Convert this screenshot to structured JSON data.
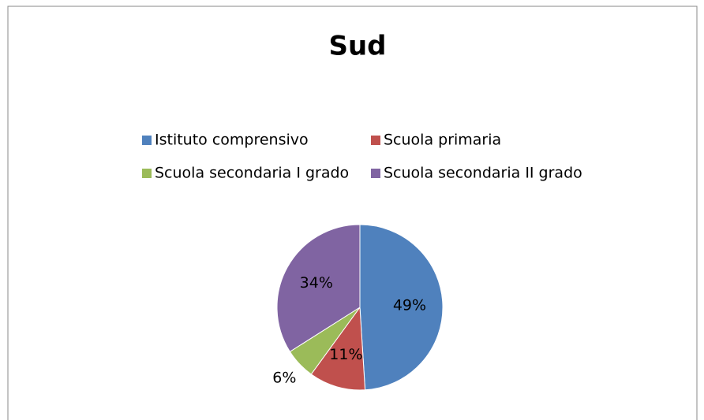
{
  "chart_data": {
    "type": "pie",
    "title": "Sud",
    "categories": [
      "Istituto comprensivo",
      "Scuola primaria",
      "Scuola secondaria I grado",
      "Scuola secondaria II grado"
    ],
    "values": [
      49,
      11,
      6,
      34
    ],
    "value_labels": [
      "49%",
      "11%",
      "6%",
      "34%"
    ],
    "colors": [
      "#4f81bd",
      "#c0504d",
      "#9bbb59",
      "#8064a2"
    ]
  }
}
